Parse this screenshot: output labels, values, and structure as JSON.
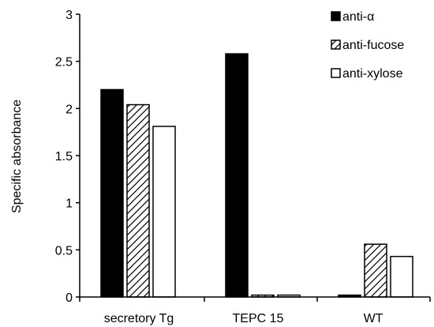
{
  "chart_data": {
    "type": "bar",
    "title": "",
    "xlabel": "",
    "ylabel": "Specific absorbance",
    "ylim": [
      0,
      3
    ],
    "yticks": [
      "0",
      "0.5",
      "1",
      "1.5",
      "2",
      "2.5",
      "3"
    ],
    "grid": false,
    "legend_position": "top-right",
    "categories": [
      "secretory Tg",
      "TEPC 15",
      "WT"
    ],
    "series": [
      {
        "name": "anti-α",
        "values": [
          2.2,
          2.58,
          0.02
        ],
        "fill": "solid-black"
      },
      {
        "name": "anti-fucose",
        "values": [
          2.04,
          0.02,
          0.56
        ],
        "fill": "diagonal-hatch"
      },
      {
        "name": "anti-xylose",
        "values": [
          1.81,
          0.02,
          0.43
        ],
        "fill": "white"
      }
    ]
  }
}
